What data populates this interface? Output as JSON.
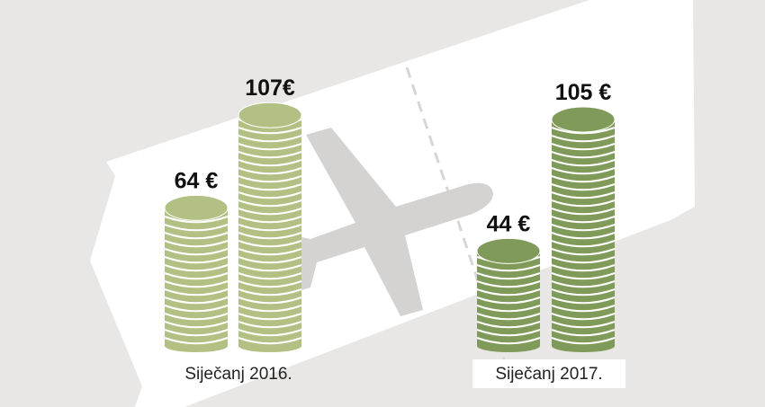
{
  "chart_data": {
    "type": "bar",
    "groups": [
      {
        "label": "Siječanj 2016.",
        "color": "#b3c084",
        "values": [
          64,
          107
        ],
        "value_labels": [
          "64 €",
          "107€"
        ]
      },
      {
        "label": "Siječanj 2017.",
        "color": "#7f9a59",
        "values": [
          44,
          105
        ],
        "value_labels": [
          "44 €",
          "105 €"
        ]
      }
    ]
  }
}
